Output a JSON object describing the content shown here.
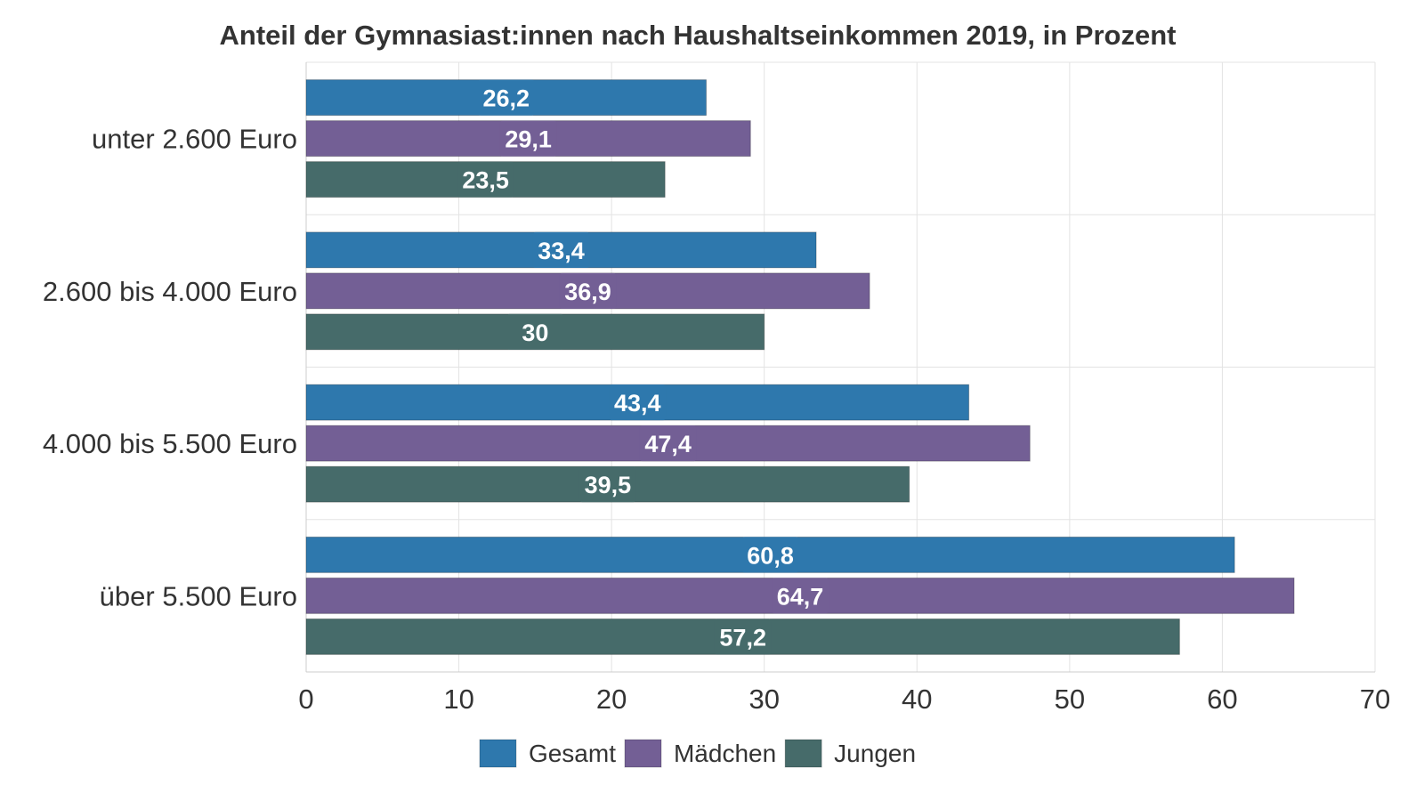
{
  "chart_data": {
    "type": "bar",
    "orientation": "horizontal",
    "title": "Anteil der Gymnasiast:innen nach Haushaltseinkommen 2019, in Prozent",
    "xlabel": "",
    "ylabel": "",
    "categories": [
      "unter 2.600 Euro",
      "2.600 bis 4.000 Euro",
      "4.000 bis 5.500 Euro",
      "über 5.500 Euro"
    ],
    "series": [
      {
        "name": "Gesamt",
        "color": "#2e78ad",
        "values": [
          26.2,
          33.4,
          43.4,
          60.8
        ],
        "labels": [
          "26,2",
          "33,4",
          "43,4",
          "60,8"
        ]
      },
      {
        "name": "Mädchen",
        "color": "#735f95",
        "values": [
          29.1,
          36.9,
          47.4,
          64.7
        ],
        "labels": [
          "29,1",
          "36,9",
          "47,4",
          "64,7"
        ]
      },
      {
        "name": "Jungen",
        "color": "#466b6a",
        "values": [
          23.5,
          30,
          39.5,
          57.2
        ],
        "labels": [
          "23,5",
          "30",
          "39,5",
          "57,2"
        ]
      }
    ],
    "xlim": [
      0,
      70
    ],
    "xticks": [
      0,
      10,
      20,
      30,
      40,
      50,
      60,
      70
    ],
    "xtick_labels": [
      "0",
      "10",
      "20",
      "30",
      "40",
      "50",
      "60",
      "70"
    ],
    "grid": true,
    "legend_position": "bottom-center"
  }
}
